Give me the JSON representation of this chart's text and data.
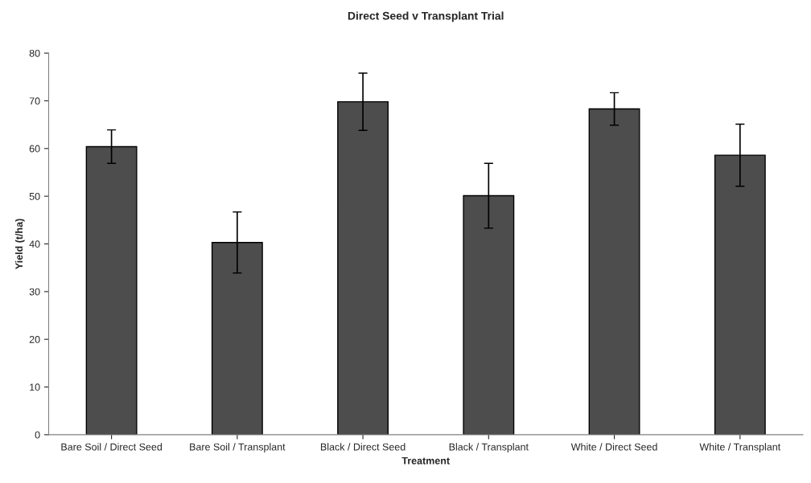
{
  "chart_data": {
    "type": "bar",
    "title": "Direct Seed v Transplant Trial",
    "xlabel": "Treatment",
    "ylabel": "Yield (t/ha)",
    "categories": [
      "Bare Soil / Direct Seed",
      "Bare Soil / Transplant",
      "Black / Direct Seed",
      "Black / Transplant",
      "White / Direct Seed",
      "White / Transplant"
    ],
    "values": [
      60.4,
      40.3,
      69.8,
      50.1,
      68.3,
      58.6
    ],
    "errors": [
      3.5,
      6.4,
      6.0,
      6.8,
      3.4,
      6.5
    ],
    "color": "#4d4d4d",
    "ylim": [
      0,
      80
    ],
    "yticks": [
      0,
      10,
      20,
      30,
      40,
      50,
      60,
      70,
      80
    ],
    "grid": false,
    "legend": false
  }
}
